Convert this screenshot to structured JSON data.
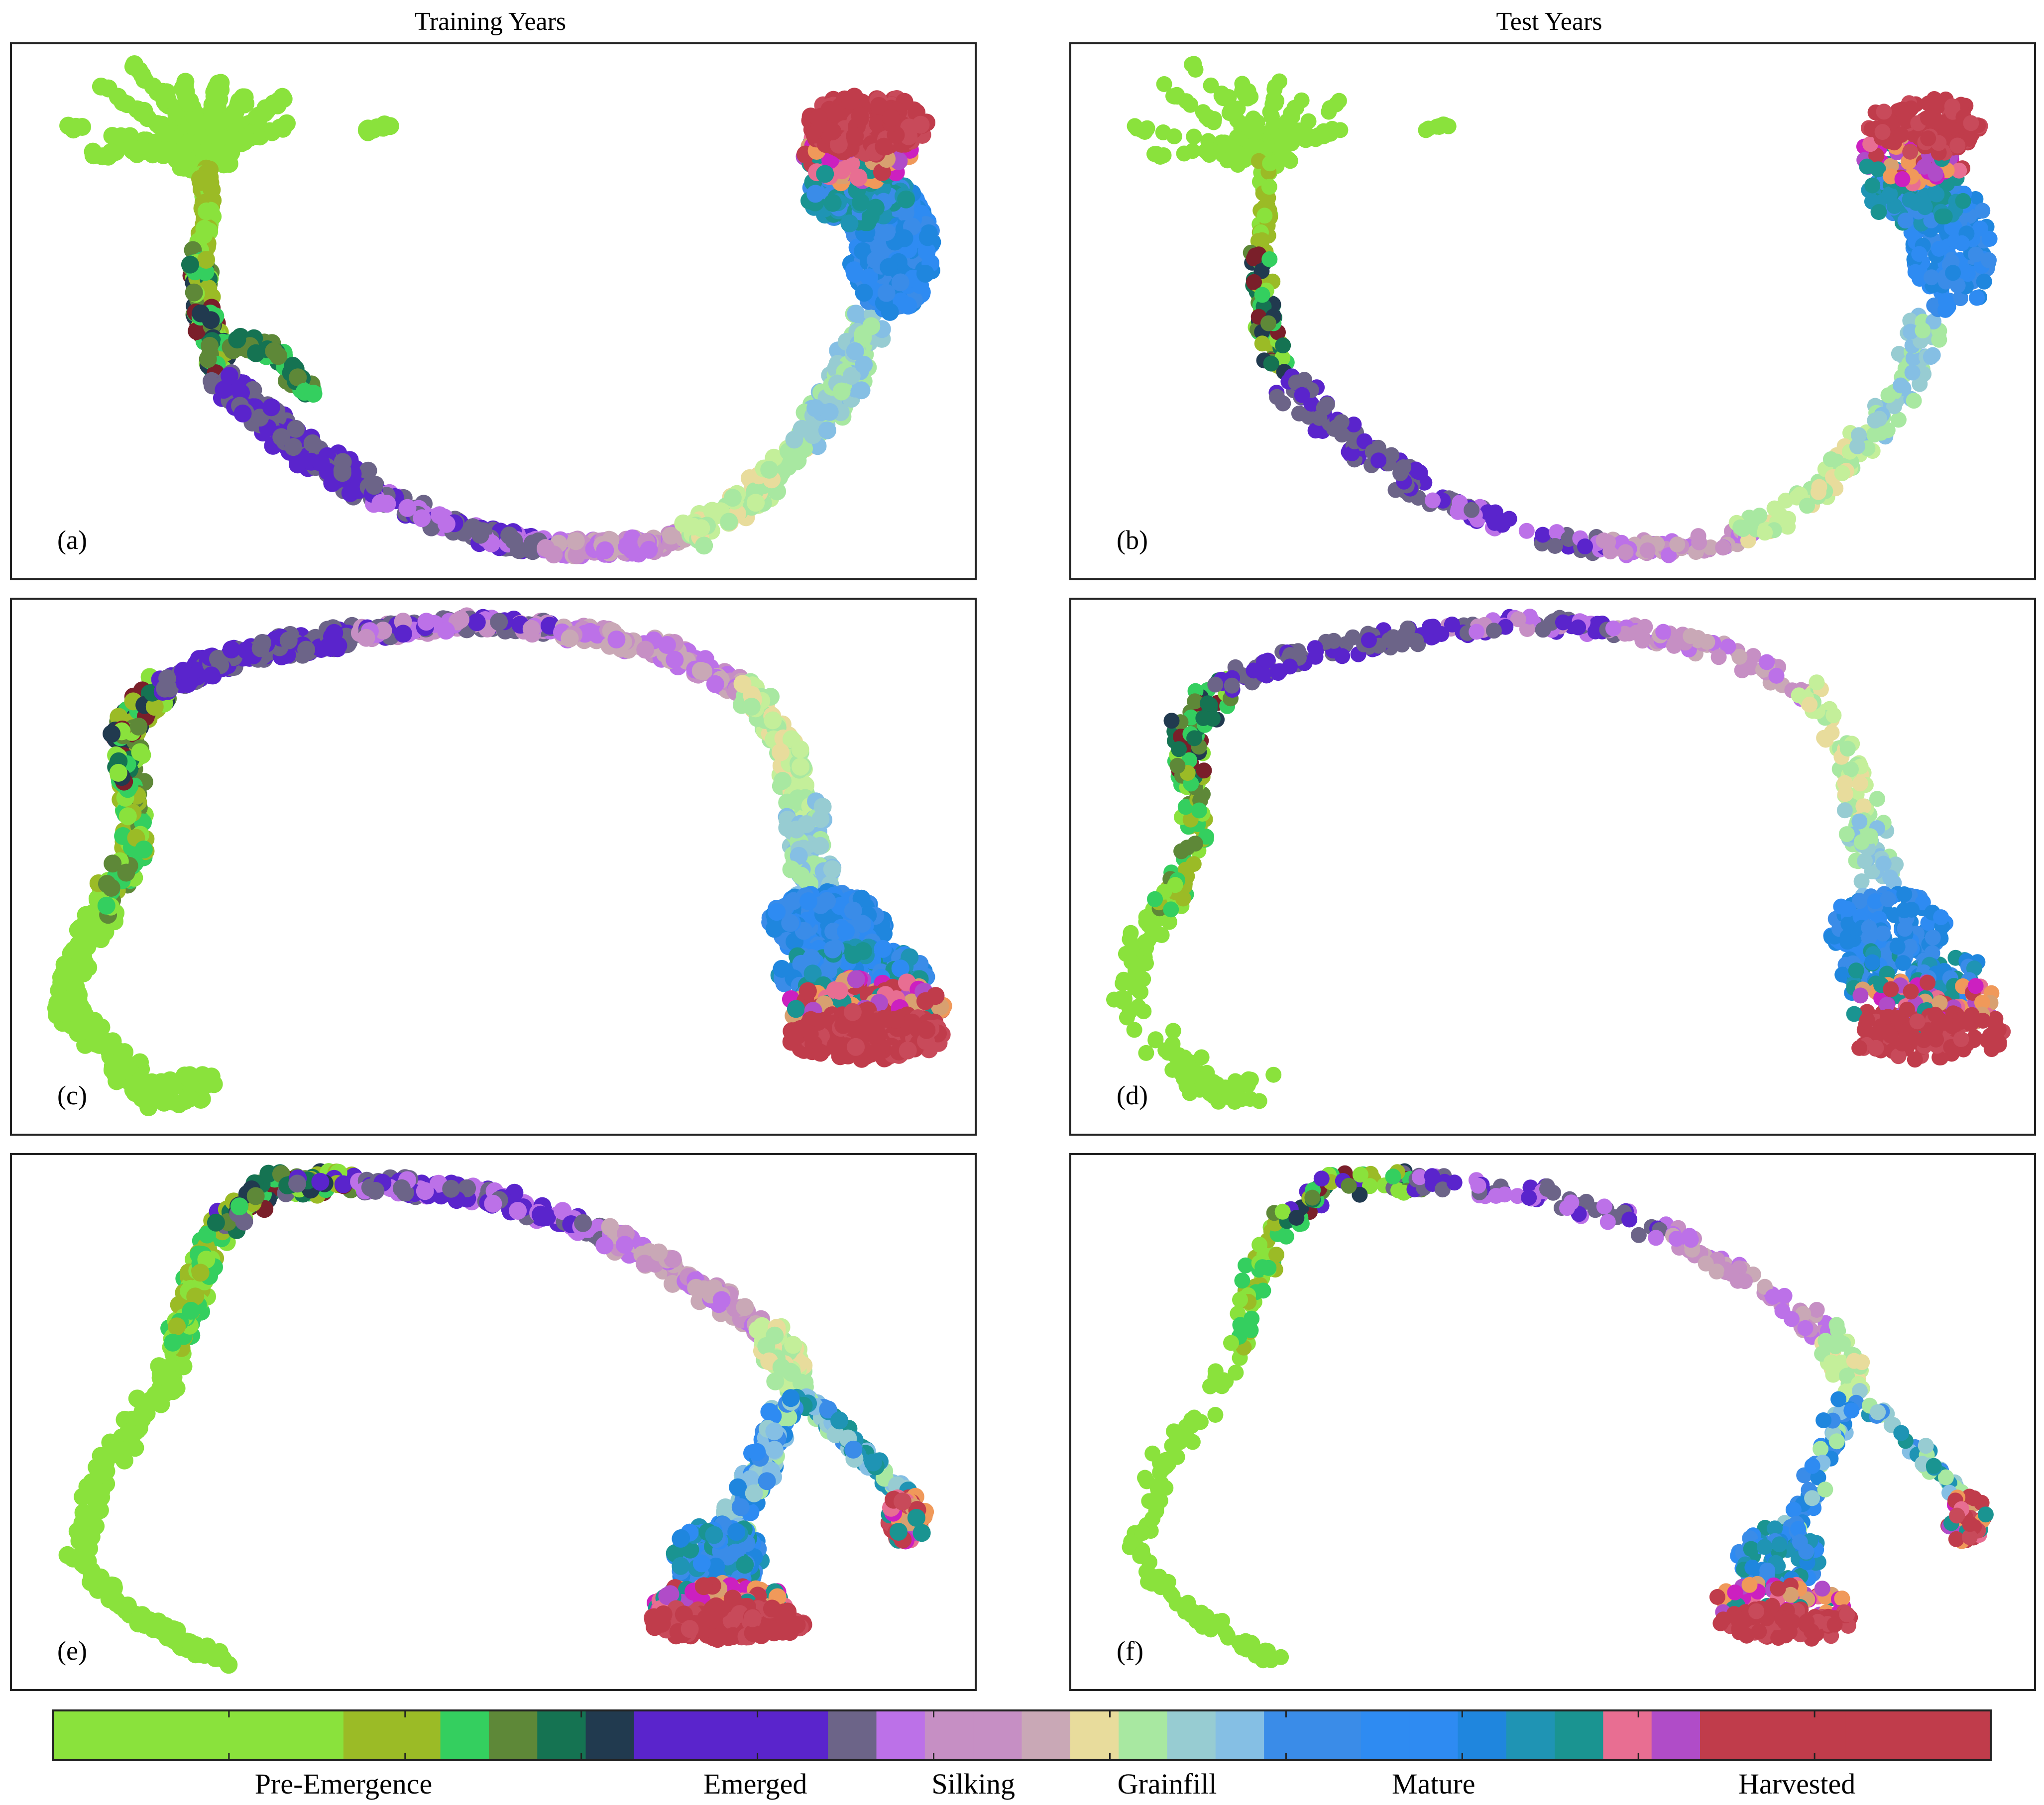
{
  "chart_data": {
    "type": "scatter",
    "column_titles": [
      "Training Years",
      "Test Years"
    ],
    "panels": [
      {
        "label": "(a)",
        "group": "Training Years",
        "row": 1
      },
      {
        "label": "(b)",
        "group": "Test Years",
        "row": 1
      },
      {
        "label": "(c)",
        "group": "Training Years",
        "row": 2
      },
      {
        "label": "(d)",
        "group": "Test Years",
        "row": 2
      },
      {
        "label": "(e)",
        "group": "Training Years",
        "row": 3
      },
      {
        "label": "(f)",
        "group": "Test Years",
        "row": 3
      }
    ],
    "colorbar": {
      "stages": [
        {
          "label": "Pre-Emergence",
          "colors": [
            "#8ae23c",
            "#8ae23c",
            "#8ae23c",
            "#8ae23c",
            "#8ae23c",
            "#8ae23c",
            "#9bbb26",
            "#9bbb26",
            "#34cf5f",
            "#5e8838",
            "#157352",
            "#213a4f"
          ]
        },
        {
          "label": "Emerged",
          "colors": [
            "#5a24cc",
            "#5a24cc",
            "#5a24cc",
            "#5a24cc",
            "#6c6488"
          ]
        },
        {
          "label": "Silking",
          "colors": [
            "#bc71e8",
            "#c68fc4",
            "#c68fc4",
            "#c9a8b6"
          ]
        },
        {
          "label": "Grainfill",
          "colors": [
            "#e8dc9c",
            "#a8e8a1",
            "#97ccd2",
            "#85bfe4"
          ]
        },
        {
          "label": "Mature",
          "colors": [
            "#3a8ce8",
            "#3a8ce8",
            "#2e8bf2",
            "#2e8bf2",
            "#1f86de",
            "#1f94b4",
            "#1a9491"
          ]
        },
        {
          "label": "Harvested",
          "colors": [
            "#e86e92",
            "#b04cc8",
            "#c03c4b",
            "#c03c4b",
            "#c03c4b",
            "#c03c4b",
            "#c03c4b",
            "#c03c4b"
          ]
        }
      ]
    }
  }
}
